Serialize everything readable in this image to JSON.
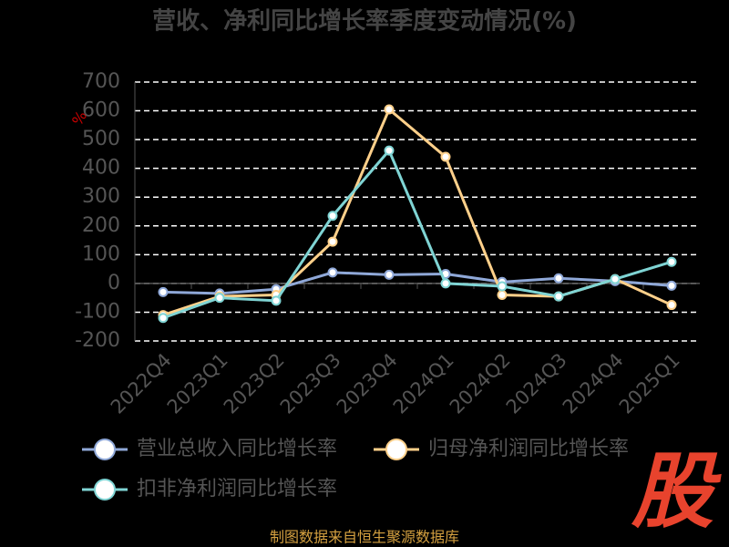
{
  "chart_data": {
    "type": "line",
    "title": "营收、净利同比增长率季度变动情况(%)",
    "y_label": "%",
    "categories": [
      "2022Q4",
      "2023Q1",
      "2023Q2",
      "2023Q3",
      "2023Q4",
      "2024Q1",
      "2024Q2",
      "2024Q3",
      "2024Q4",
      "2025Q1"
    ],
    "series": [
      {
        "name": "营业总收入同比增长率",
        "color": "#8fa8d8",
        "values": [
          -30,
          -35,
          -20,
          38,
          30,
          33,
          5,
          18,
          8,
          -8
        ]
      },
      {
        "name": "归母净利润同比增长率",
        "color": "#ffd08a",
        "values": [
          -110,
          -45,
          -40,
          145,
          605,
          440,
          -40,
          -45,
          15,
          -75
        ]
      },
      {
        "name": "扣非净利润同比增长率",
        "color": "#7fd4d4",
        "values": [
          -120,
          -50,
          -60,
          235,
          462,
          0,
          -10,
          -45,
          15,
          75
        ]
      }
    ],
    "ylim": [
      -200,
      700
    ],
    "yticks": [
      -200,
      -100,
      0,
      100,
      200,
      300,
      400,
      500,
      600,
      700
    ],
    "grid": true,
    "source": "制图数据来自恒生聚源数据库",
    "logo": "股"
  }
}
